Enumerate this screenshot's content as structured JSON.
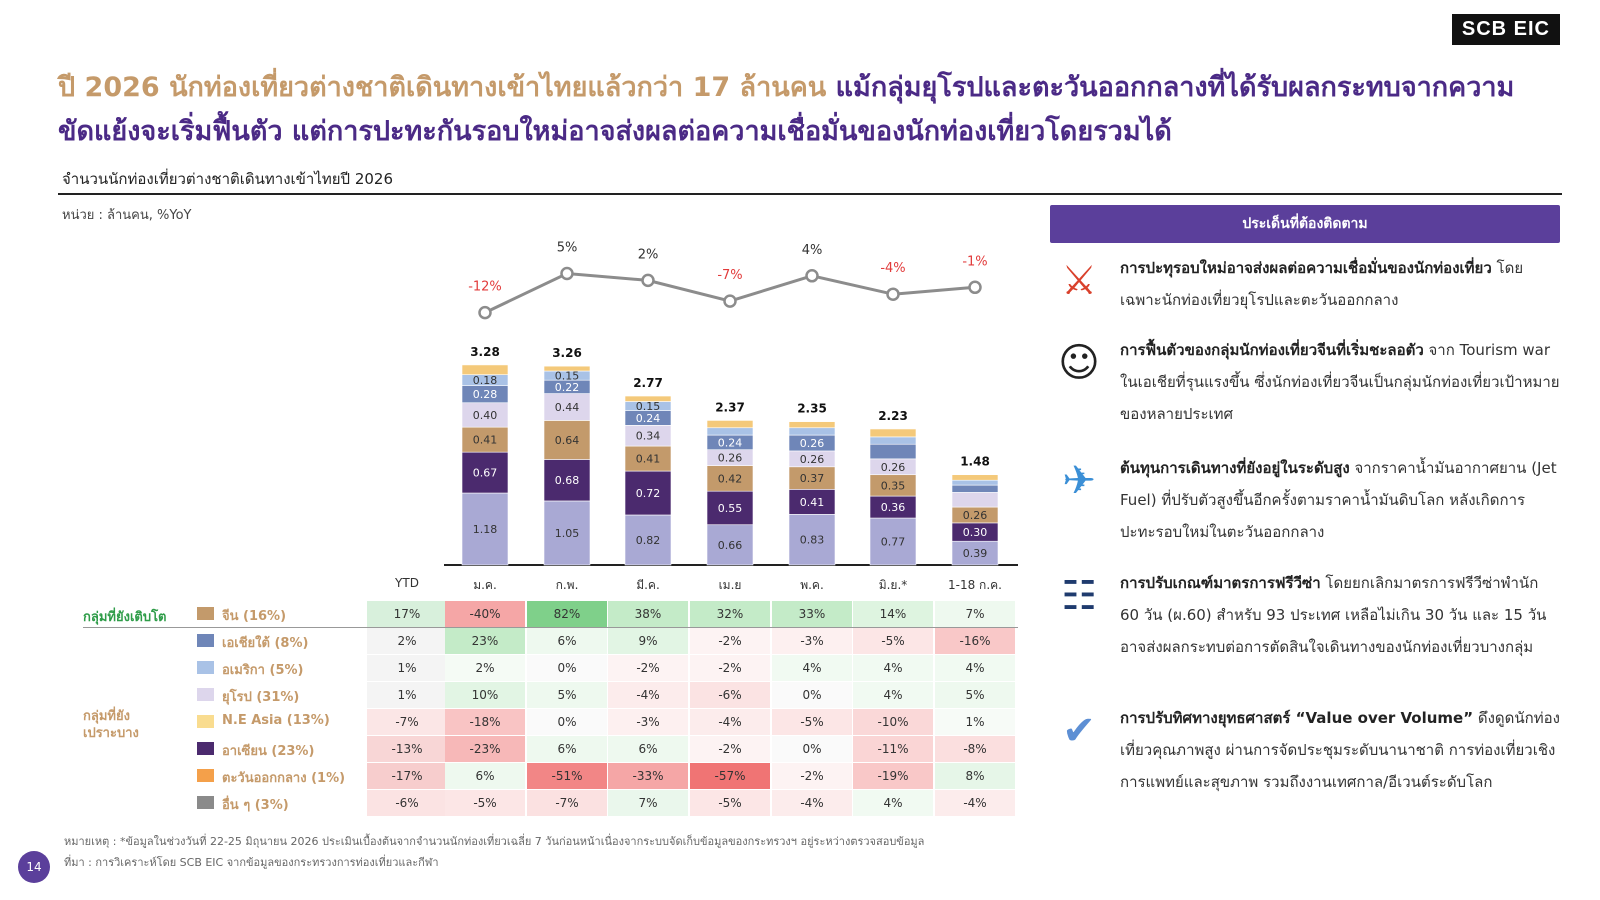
{
  "logo": "SCB EIC",
  "headline": {
    "part1": "ปี 2026 นักท่องเที่ยวต่างชาติเดินทางเข้าไทยแล้วกว่า 17 ล้านคน",
    "part2": "แม้กลุ่มยุโรปและตะวันออกกลางที่ได้รับผลกระทบจากความขัดแย้งจะเริ่มฟื้นตัว แต่การปะทะกันรอบใหม่อาจส่งผลต่อความเชื่อมั่นของนักท่องเที่ยวโดยรวมได้"
  },
  "chart_title": "จำนวนนักท่องเที่ยวต่างชาติเดินทางเข้าไทยปี 2026",
  "unit": "หน่วย : ล้านคน, %YoY",
  "chart_data": {
    "type": "bar",
    "stacked": true,
    "categories": [
      "ม.ค.",
      "ก.พ.",
      "มี.ค.",
      "เม.ย",
      "พ.ค.",
      "มิ.ย.*",
      "1-18 ก.ค."
    ],
    "totals": [
      3.28,
      3.26,
      2.77,
      2.37,
      2.35,
      2.23,
      1.48
    ],
    "yoy_line": [
      "-12%",
      "5%",
      "2%",
      "-7%",
      "4%",
      "-4%",
      "-1%"
    ],
    "yoy_values": [
      -12,
      5,
      2,
      -7,
      4,
      -4,
      -1
    ],
    "series": [
      {
        "name": "จีน (16%)",
        "color": "#a9a9d4",
        "values": [
          1.18,
          1.05,
          0.82,
          0.66,
          0.83,
          0.77,
          0.39
        ],
        "labels": [
          "1.18",
          "1.05",
          "0.82",
          "0.66",
          "0.83",
          "0.77",
          "0.39"
        ]
      },
      {
        "name": "อาเซียน (23%)",
        "color": "#4b2a6e",
        "values": [
          0.67,
          0.68,
          0.72,
          0.55,
          0.41,
          0.36,
          0.3
        ],
        "labels": [
          "0.67",
          "0.68",
          "0.72",
          "0.55",
          "0.41",
          "0.36",
          "0.30"
        ]
      },
      {
        "name": "ยุโรป (31%)",
        "color": "#c39a6b",
        "values": [
          0.41,
          0.64,
          0.41,
          0.42,
          0.37,
          0.35,
          0.26
        ],
        "labels": [
          "0.41",
          "0.64",
          "0.41",
          "0.42",
          "0.37",
          "0.35",
          "0.26"
        ]
      },
      {
        "name": "เอเชียใต้ (8%)",
        "color": "#ddd6ec",
        "values": [
          0.4,
          0.44,
          0.34,
          0.26,
          0.26,
          0.26,
          0.24
        ],
        "labels": [
          "0.40",
          "0.44",
          "0.34",
          "0.26",
          "0.26",
          "0.26",
          ""
        ]
      },
      {
        "name": "อเมริกา (5%)",
        "color": "#6f86b8",
        "values": [
          0.28,
          0.22,
          0.24,
          0.24,
          0.26,
          0.24,
          0.12
        ],
        "labels": [
          "0.28",
          "0.22",
          "0.24",
          "0.24",
          "0.26",
          "",
          ""
        ]
      },
      {
        "name": "N.E Asia (13%)",
        "color": "#a9c2e6",
        "values": [
          0.18,
          0.15,
          0.15,
          0.12,
          0.12,
          0.12,
          0.08
        ],
        "labels": [
          "0.18",
          "0.15",
          "0.15",
          "",
          "",
          "",
          ""
        ]
      },
      {
        "name": "อื่น ๆ",
        "color": "#f4c97a",
        "values": [
          0.16,
          0.08,
          0.09,
          0.12,
          0.1,
          0.13,
          0.09
        ],
        "labels": [
          "",
          "",
          "",
          "",
          "",
          "",
          ""
        ]
      }
    ]
  },
  "table": {
    "ytd_header": "YTD",
    "columns": [
      "ม.ค.",
      "ก.พ.",
      "มี.ค.",
      "เม.ย",
      "พ.ค.",
      "มิ.ย.*",
      "1-18 ก.ค."
    ],
    "group_growing": "กลุ่มที่ยังเติบโต",
    "group_vulnerable": "กลุ่มที่ยังเปราะบาง",
    "rows": [
      {
        "label": "จีน (16%)",
        "color": "#c39a6b",
        "ytd": "17%",
        "cells": [
          "-40%",
          "82%",
          "38%",
          "32%",
          "33%",
          "14%",
          "7%"
        ],
        "bg": [
          "#f5a6a6",
          "#7fd08a",
          "#c4ebc8",
          "#c4ebc8",
          "#c4ebc8",
          "#def4e0",
          "#eef9ef"
        ]
      },
      {
        "label": "เอเชียใต้ (8%)",
        "color": "#6f86b8",
        "ytd": "2%",
        "cells": [
          "23%",
          "6%",
          "9%",
          "-2%",
          "-3%",
          "-5%",
          "-16%"
        ],
        "bg": [
          "#c4ebc8",
          "#eef9ef",
          "#e2f5e4",
          "#fdf3f3",
          "#fdf0f0",
          "#fce6e6",
          "#f9c8c8"
        ]
      },
      {
        "label": "อเมริกา (5%)",
        "color": "#a9c2e6",
        "ytd": "1%",
        "cells": [
          "2%",
          "0%",
          "-2%",
          "-2%",
          "4%",
          "4%",
          "4%"
        ],
        "bg": [
          "#f5fbf5",
          "#fafafa",
          "#fdf3f3",
          "#fdf3f3",
          "#f1faf2",
          "#f1faf2",
          "#f1faf2"
        ]
      },
      {
        "label": "ยุโรป (31%)",
        "color": "#ddd6ec",
        "ytd": "1%",
        "cells": [
          "10%",
          "5%",
          "-4%",
          "-6%",
          "0%",
          "4%",
          "5%"
        ],
        "bg": [
          "#e2f5e4",
          "#eef9ef",
          "#fcecec",
          "#fbe3e3",
          "#fafafa",
          "#f1faf2",
          "#eef9ef"
        ]
      },
      {
        "label": "N.E Asia (13%)",
        "color": "#f9dc8f",
        "ytd": "-7%",
        "cells": [
          "-18%",
          "0%",
          "-3%",
          "-4%",
          "-5%",
          "-10%",
          "1%"
        ],
        "bg": [
          "#f9c4c4",
          "#fafafa",
          "#fdf0f0",
          "#fcecec",
          "#fce6e6",
          "#fad8d8",
          "#f7fbf7"
        ]
      },
      {
        "label": "อาเซียน (23%)",
        "color": "#4b2a6e",
        "ytd": "-13%",
        "cells": [
          "-23%",
          "6%",
          "6%",
          "-2%",
          "0%",
          "-11%",
          "-8%"
        ],
        "bg": [
          "#f7b8b8",
          "#eef9ef",
          "#eef9ef",
          "#fdf3f3",
          "#fafafa",
          "#fad5d5",
          "#fbdfdf"
        ]
      },
      {
        "label": "ตะวันออกกลาง (1%)",
        "color": "#f4a04a",
        "ytd": "-17%",
        "cells": [
          "6%",
          "-51%",
          "-33%",
          "-57%",
          "-2%",
          "-19%",
          "8%"
        ],
        "bg": [
          "#eef9ef",
          "#f28686",
          "#f5a6a6",
          "#f07474",
          "#fdf3f3",
          "#f9c8c8",
          "#e6f6e8"
        ]
      },
      {
        "label": "อื่น ๆ (3%)",
        "color": "#8a8a8a",
        "ytd": "-6%",
        "cells": [
          "-5%",
          "-7%",
          "7%",
          "-5%",
          "-4%",
          "4%",
          "-4%"
        ],
        "bg": [
          "#fce6e6",
          "#fbe1e1",
          "#eaf7ec",
          "#fce6e6",
          "#fcecec",
          "#f1faf2",
          "#fcecec"
        ]
      }
    ],
    "ytd_bg": [
      "#d8f0dc",
      "#f4f4f4",
      "#f4f4f4",
      "#f4f4f4",
      "#fbe6e6",
      "#f8d6d6",
      "#f7cdcd",
      "#fbe3e3"
    ]
  },
  "issues_header": "ประเด็นที่ต้องติดตาม",
  "issues": [
    {
      "icon": "conflict-icon",
      "bold": "การปะทุรอบใหม่อาจส่งผลต่อความเชื่อมั่นของนักท่องเที่ยว",
      "text": " โดยเฉพาะนักท่องเที่ยวยุโรปและตะวันออกกลาง"
    },
    {
      "icon": "chinese-tourist-icon",
      "bold": "การฟื้นตัวของกลุ่มนักท่องเที่ยวจีนที่เริ่มชะลอตัว",
      "text": " จาก Tourism war ในเอเชียที่รุนแรงขึ้น ซึ่งนักท่องเที่ยวจีนเป็นกลุ่มนักท่องเที่ยวเป้าหมายของหลายประเทศ"
    },
    {
      "icon": "ticket-icon",
      "bold": "ต้นทุนการเดินทางที่ยังอยู่ในระดับสูง",
      "text": " จากราคาน้ำมันอากาศยาน (Jet Fuel) ที่ปรับตัวสูงขึ้นอีกครั้งตามราคาน้ำมันดิบโลก หลังเกิดการปะทะรอบใหม่ในตะวันออกกลาง"
    },
    {
      "icon": "passport-icon",
      "bold": "การปรับเกณฑ์มาตรการฟรีวีซ่า",
      "text": " โดยยกเลิกมาตรการฟรีวีซ่าพำนัก 60 วัน (ผ.60) สำหรับ 93 ประเทศ เหลือไม่เกิน 30 วัน และ 15 วันอาจส่งผลกระทบต่อการตัดสินใจเดินทางของนักท่องเที่ยวบางกลุ่ม"
    },
    {
      "icon": "strategy-icon",
      "bold": "การปรับทิศทางยุทธศาสตร์ “Value over Volume”",
      "text": " ดึงดูดนักท่องเที่ยวคุณภาพสูง ผ่านการจัดประชุมระดับนานาชาติ การท่องเที่ยวเชิงการแพทย์และสุขภาพ รวมถึงงานเทศกาล/อีเวนต์ระดับโลก"
    }
  ],
  "footnote1": "หมายเหตุ : *ข้อมูลในช่วงวันที่ 22-25 มิถุนายน 2026 ประเมินเบื้องต้นจากจำนวนนักท่องเที่ยวเฉลี่ย 7 วันก่อนหน้าเนื่องจากระบบจัดเก็บข้อมูลของกระทรวงฯ อยู่ระหว่างตรวจสอบข้อมูล",
  "footnote2": "ที่มา : การวิเคราะห์โดย SCB EIC จากข้อมูลของกระทรวงการท่องเที่ยวและกีฬา",
  "page_number": "14"
}
